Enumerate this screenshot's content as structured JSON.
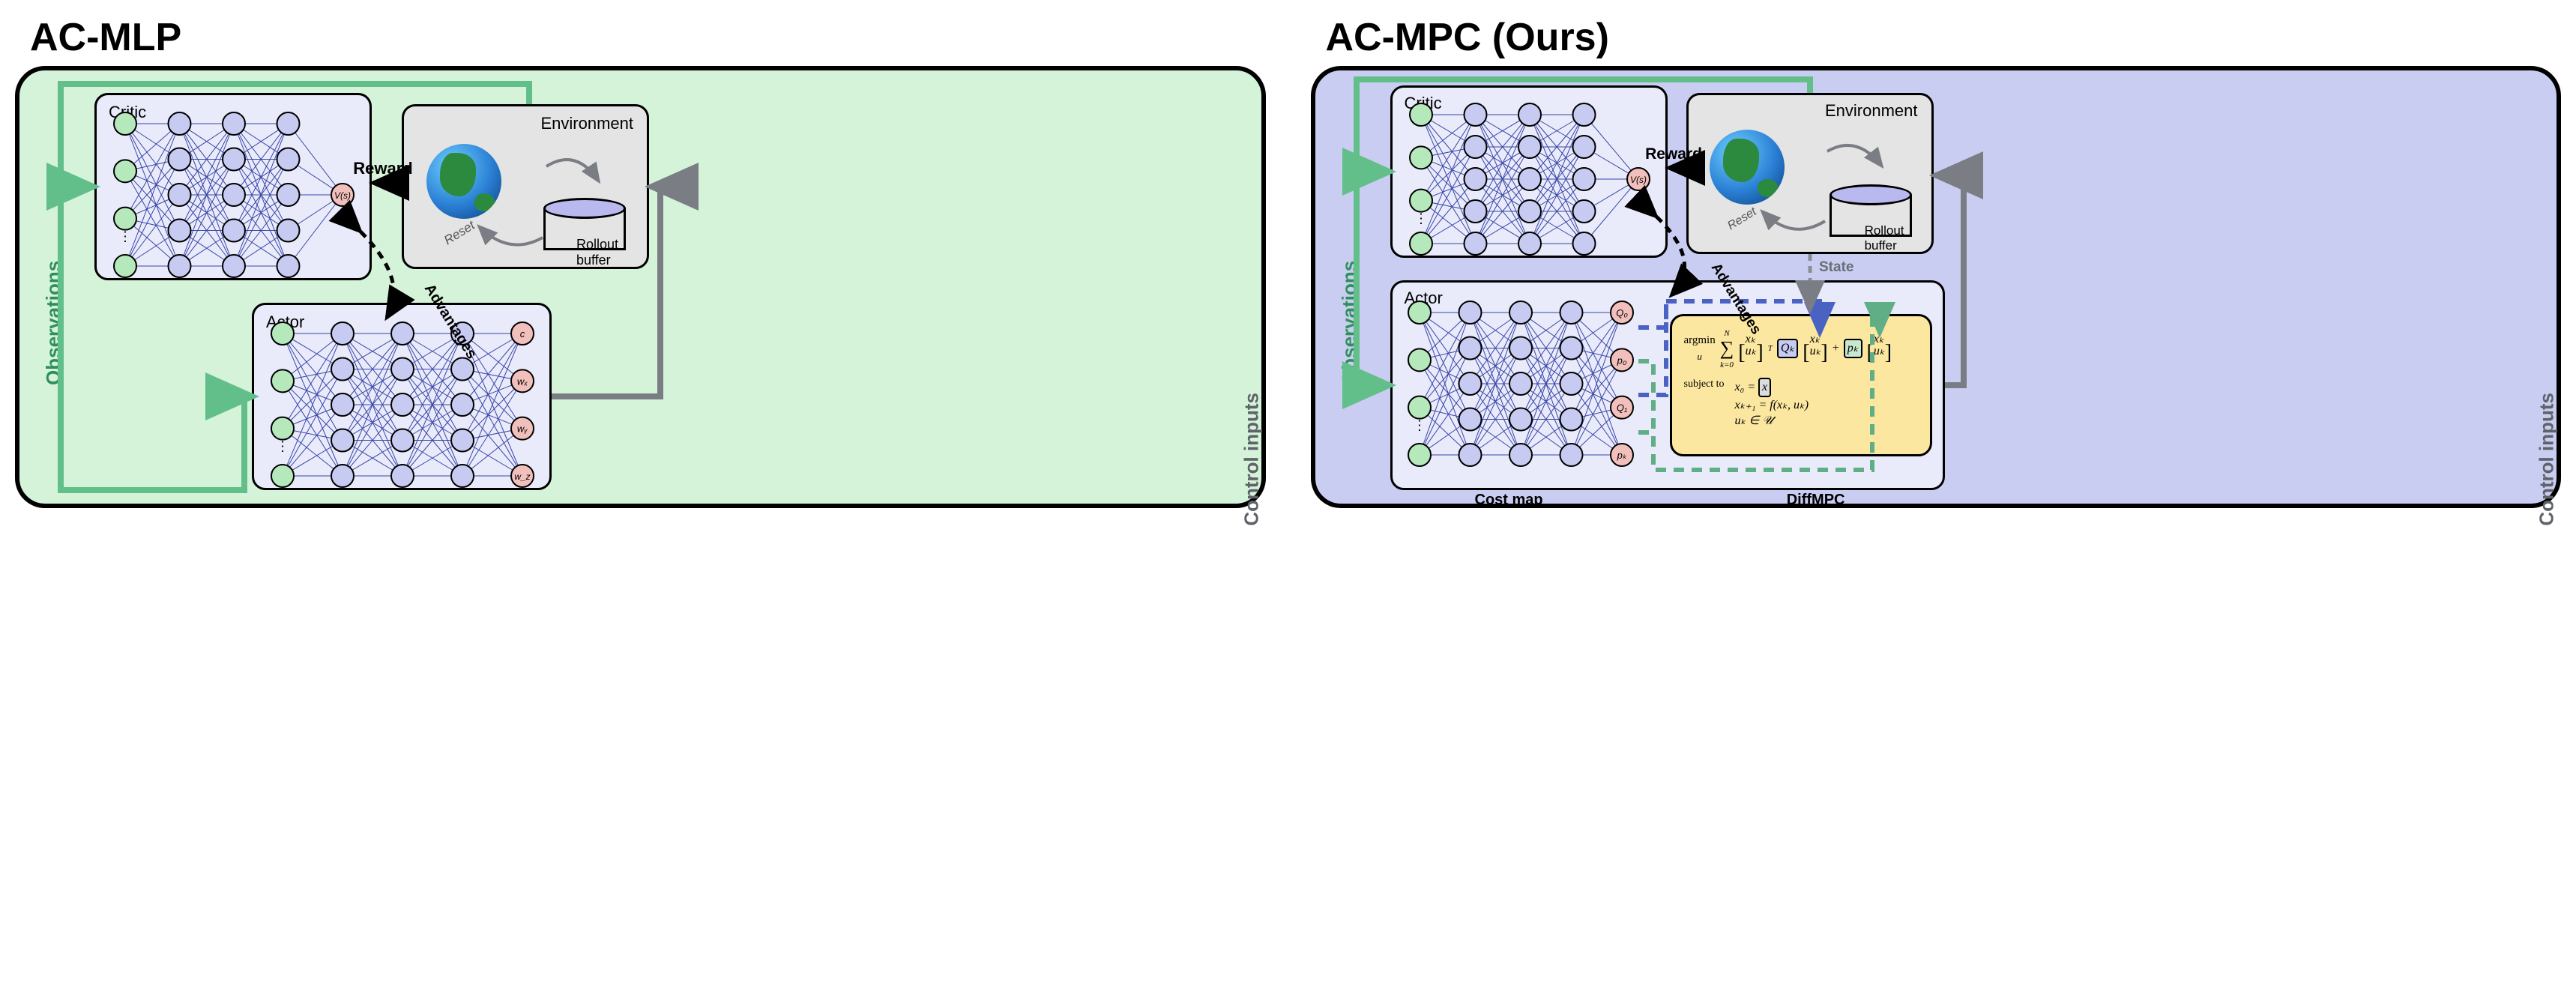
{
  "colors": {
    "left_bg": "#d4f3d9",
    "right_bg": "#c9cdf1",
    "box_bg_light": "#e9eafa",
    "env_bg": "#e4e4e4",
    "diffmpc_bg": "#fbe7a0",
    "node_green": "#b5e8bb",
    "node_blue": "#c7caf1",
    "node_pink": "#f2c0bc",
    "arrow_green": "#62bf8a",
    "arrow_gray": "#7a7e84",
    "dash_blue": "#4a62c2",
    "dash_green": "#5fae86"
  },
  "left": {
    "title": "AC-MLP",
    "critic_label": "Critic",
    "actor_label": "Actor",
    "env_label": "Environment",
    "rollout_label": "Rollout\nbuffer",
    "reward_label": "Reward",
    "advantages_label": "Advantages",
    "reset_label": "Reset",
    "obs_label": "Observations",
    "ctrl_label": "Control inputs",
    "critic_out": "V(s)",
    "actor_outs": [
      "c",
      "wₓ",
      "wᵧ",
      "w_z"
    ]
  },
  "right": {
    "title": "AC-MPC (Ours)",
    "critic_label": "Critic",
    "actor_label": "Actor",
    "env_label": "Environment",
    "rollout_label": "Rollout\nbuffer",
    "reward_label": "Reward",
    "advantages_label": "Advantages",
    "reset_label": "Reset",
    "state_label": "State",
    "obs_label": "Observations",
    "ctrl_label": "Control inputs",
    "critic_out": "V(s)",
    "actor_outs": [
      "Q₀",
      "p₀",
      "Q₁",
      "pₖ"
    ],
    "costmap_label": "Cost map",
    "diffmpc_label": "DiffMPC",
    "math": {
      "argmin": "argmin",
      "sub_u": "u",
      "sum": "∑",
      "sum_from": "k=0",
      "sum_to": "N",
      "xk": "xₖ",
      "uk": "uₖ",
      "Qk": "Qₖ",
      "pk": "pₖ",
      "subject": "subject to",
      "c1a": "x₀ =",
      "c1b": "x",
      "c2": "xₖ₊₁ = f(xₖ, uₖ)",
      "c3": "uₖ ∈ 𝒰"
    }
  },
  "nn": {
    "input_count": 4,
    "hidden_counts": [
      5,
      5,
      5
    ],
    "nn_width": 280,
    "nn_height": 230
  }
}
